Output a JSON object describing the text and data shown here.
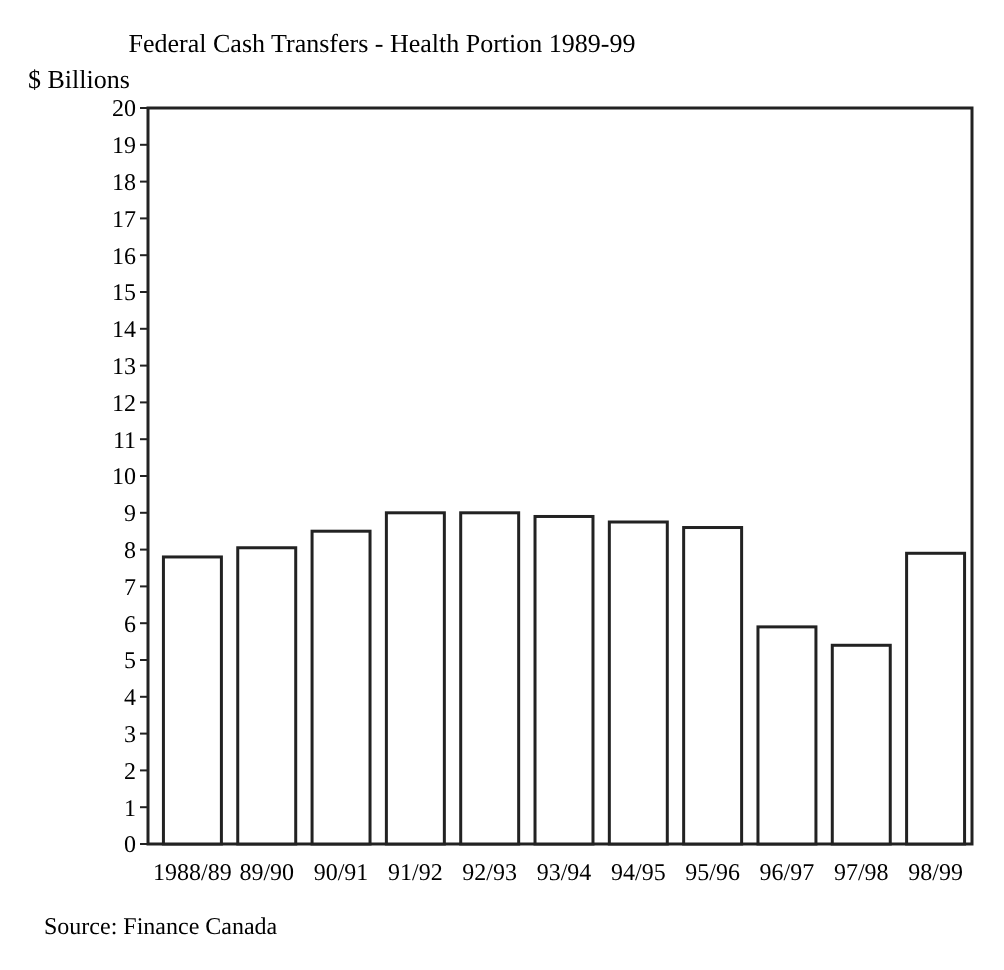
{
  "chart_data": {
    "type": "bar",
    "title": "Federal Cash Transfers - Health Portion 1989-99",
    "ylabel": "$ Billions",
    "categories": [
      "1988/89",
      "89/90",
      "90/91",
      "91/92",
      "92/93",
      "93/94",
      "94/95",
      "95/96",
      "96/97",
      "97/98",
      "98/99"
    ],
    "values": [
      7.8,
      8.05,
      8.5,
      9.0,
      9.0,
      8.9,
      8.75,
      8.6,
      5.9,
      5.4,
      7.9
    ],
    "color": "#ffffff",
    "ylim": [
      0,
      20
    ],
    "yticks": [
      0,
      1,
      2,
      3,
      4,
      5,
      6,
      7,
      8,
      9,
      10,
      11,
      12,
      13,
      14,
      15,
      16,
      17,
      18,
      19,
      20
    ],
    "grid": false,
    "annotations": [
      "Source: Finance Canada"
    ]
  }
}
